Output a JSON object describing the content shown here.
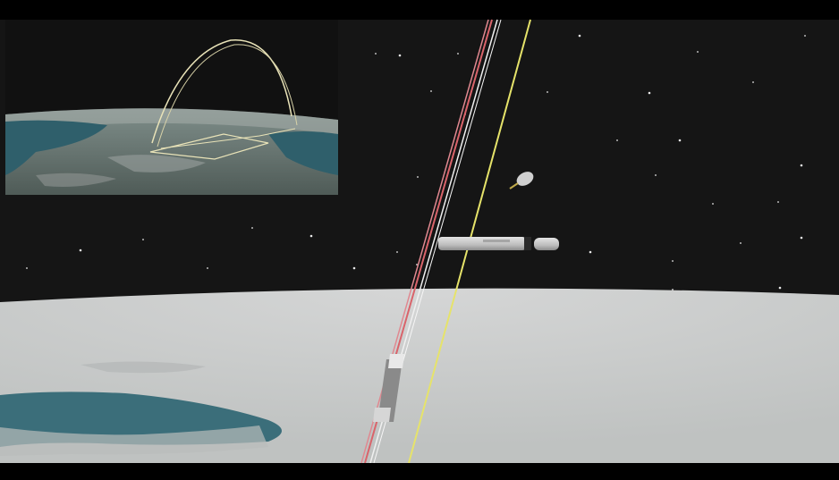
{
  "video": {
    "letterbox_color": "#000000",
    "space_color": "#161616"
  },
  "main_view": {
    "planet_color": "#c9cbca",
    "ocean_color": "#3b6e7a",
    "trajectory_colors": [
      "#d9646b",
      "#f2f2f2",
      "#e6e36a"
    ],
    "objects": [
      "satellite-debris",
      "rocket-stage-body",
      "rocket-stage-nose"
    ]
  },
  "inset_view": {
    "ground_color": "#5d6a66",
    "ocean_color": "#2f5f6b",
    "arc_color": "#e9e3b8"
  }
}
